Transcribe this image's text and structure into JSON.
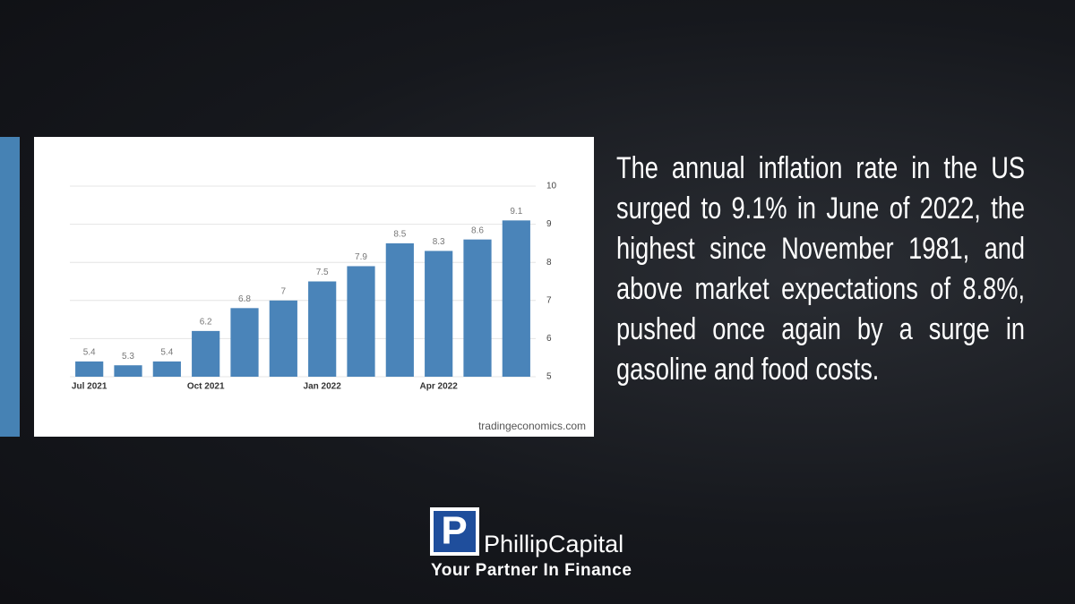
{
  "chart_data": {
    "type": "bar",
    "categories": [
      "Jul 2021",
      null,
      null,
      "Oct 2021",
      null,
      null,
      "Jan 2022",
      null,
      null,
      "Apr 2022",
      null,
      null
    ],
    "values": [
      5.4,
      5.3,
      5.4,
      6.2,
      6.8,
      7,
      7.5,
      7.9,
      8.5,
      8.3,
      8.6,
      9.1
    ],
    "color": "#4a84b9",
    "ylim": [
      5,
      10
    ],
    "yticks": [
      5,
      6,
      7,
      8,
      9,
      10
    ],
    "grid": true,
    "source": "tradingeconomics.com"
  },
  "text": {
    "body": "The annual inflation rate in the US surged to 9.1% in June of 2022, the highest since November 1981, and above market expectations of 8.8%, pushed once again by a surge in gasoline and food costs."
  },
  "logo": {
    "mark": "P",
    "name": "PhillipCapital",
    "tagline": "Your Partner In Finance"
  }
}
